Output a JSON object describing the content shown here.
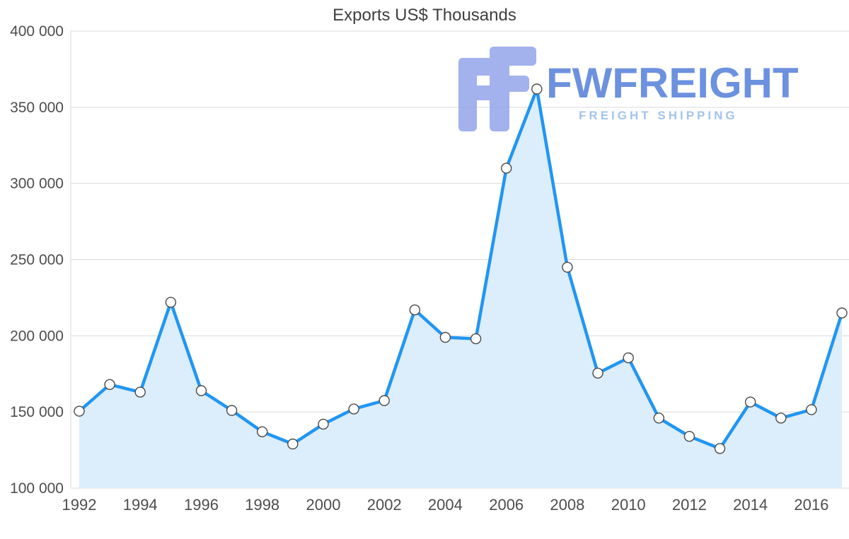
{
  "chart_data": {
    "type": "area",
    "title": "Exports US$ Thousands",
    "xlabel": "",
    "ylabel": "",
    "x": [
      1992,
      1993,
      1994,
      1995,
      1996,
      1997,
      1998,
      1999,
      2000,
      2001,
      2002,
      2003,
      2004,
      2005,
      2006,
      2007,
      2008,
      2009,
      2010,
      2011,
      2012,
      2013,
      2014,
      2015,
      2016,
      2017
    ],
    "series": [
      {
        "name": "Exports US$ Thousands",
        "values": [
          150500,
          168000,
          163000,
          222000,
          164000,
          151000,
          137000,
          129000,
          142000,
          152000,
          157500,
          217000,
          199000,
          198000,
          310000,
          362000,
          245000,
          175500,
          185500,
          146000,
          134000,
          126000,
          156500,
          146000,
          151500,
          215000
        ]
      }
    ],
    "ylim": [
      100000,
      400000
    ],
    "ytick_step": 50000,
    "ytick_labels": [
      "100 000",
      "150 000",
      "200 000",
      "250 000",
      "300 000",
      "350 000",
      "400 000"
    ],
    "xtick_start": 1992,
    "xtick_step": 2,
    "xtick_labels": [
      "1992",
      "1994",
      "1996",
      "1998",
      "2000",
      "2002",
      "2004",
      "2006",
      "2008",
      "2010",
      "2012",
      "2014",
      "2016"
    ],
    "grid": true,
    "legend_position": "none",
    "markers": "circle",
    "colors": {
      "line": "#2196f3",
      "fill": "#dcedfb",
      "marker_fill": "#ffffff",
      "marker_stroke": "#4a4a4a",
      "grid": "#d9d9d9",
      "axis_text": "#4d4d4d",
      "title_text": "#3f3f3f"
    }
  },
  "watermark": {
    "brand": "FWFREIGHT",
    "tagline": "FREIGHT SHIPPING",
    "brand_color": "#4d7ad9",
    "tagline_color": "#8fb6ea",
    "icon_color": "#8fa2e8"
  }
}
